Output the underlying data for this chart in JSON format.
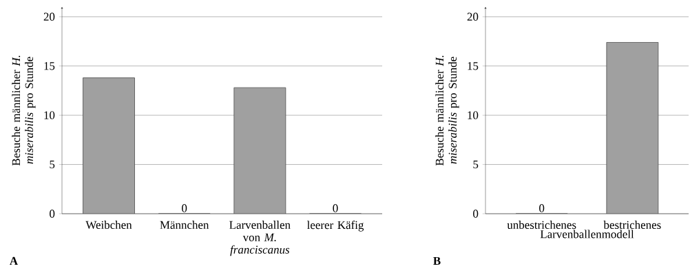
{
  "chart_data": [
    {
      "type": "bar",
      "categories": [
        "Weibchen",
        "Männchen",
        "Larvenballen von *M. franciscanus*",
        "leerer Käfig"
      ],
      "values": [
        13.8,
        0,
        12.8,
        0
      ],
      "value_labels": [
        null,
        "0",
        null,
        "0"
      ],
      "color": "#a0a0a0",
      "ylabel": "Besuche männlicher *H. miserabilis* pro Stunde",
      "ylim": [
        0,
        21
      ],
      "yticks": [
        0,
        5,
        10,
        15,
        20
      ],
      "grid": "y",
      "annotations": [
        "A"
      ]
    },
    {
      "type": "bar",
      "categories": [
        "unbestrichenes",
        "bestrichenes"
      ],
      "values": [
        0,
        17.4
      ],
      "value_labels": [
        "0",
        null
      ],
      "color": "#a0a0a0",
      "xlabel": "Larvenballenmodell",
      "ylabel": "Besuche männlicher *H. miserabilis* pro Stunde",
      "ylim": [
        0,
        21
      ],
      "yticks": [
        0,
        5,
        10,
        15,
        20
      ],
      "grid": "y",
      "annotations": [
        "B"
      ]
    }
  ]
}
